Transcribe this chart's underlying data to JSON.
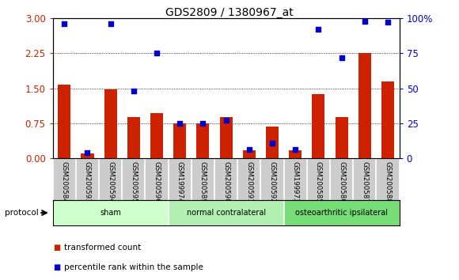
{
  "title": "GDS2809 / 1380967_at",
  "categories": [
    "GSM200584",
    "GSM200593",
    "GSM200594",
    "GSM200595",
    "GSM200596",
    "GSM199974",
    "GSM200589",
    "GSM200590",
    "GSM200591",
    "GSM200592",
    "GSM199973",
    "GSM200585",
    "GSM200586",
    "GSM200587",
    "GSM200588"
  ],
  "red_values": [
    1.57,
    0.1,
    1.48,
    0.88,
    0.97,
    0.75,
    0.75,
    0.88,
    0.17,
    0.68,
    0.17,
    1.37,
    0.88,
    2.25,
    1.65
  ],
  "blue_values_pct": [
    96,
    4,
    96,
    48,
    75,
    25,
    25,
    27,
    6,
    11,
    6,
    92,
    72,
    98,
    97
  ],
  "groups": [
    {
      "label": "sham",
      "start": 0,
      "end": 5,
      "color": "#ccffcc"
    },
    {
      "label": "normal contralateral",
      "start": 5,
      "end": 10,
      "color": "#b2f0b2"
    },
    {
      "label": "osteoarthritic ipsilateral",
      "start": 10,
      "end": 15,
      "color": "#77dd77"
    }
  ],
  "ylim_left": [
    0,
    3
  ],
  "ylim_right": [
    0,
    100
  ],
  "yticks_left": [
    0,
    0.75,
    1.5,
    2.25,
    3.0
  ],
  "yticks_right": [
    0,
    25,
    50,
    75,
    100
  ],
  "bar_color_red": "#cc2200",
  "bar_color_blue": "#0000cc",
  "protocol_label": "protocol",
  "legend_red": "transformed count",
  "legend_blue": "percentile rank within the sample",
  "plot_bg_color": "#ffffff",
  "xtick_bg_color": "#cccccc",
  "grid_color": "#000000"
}
